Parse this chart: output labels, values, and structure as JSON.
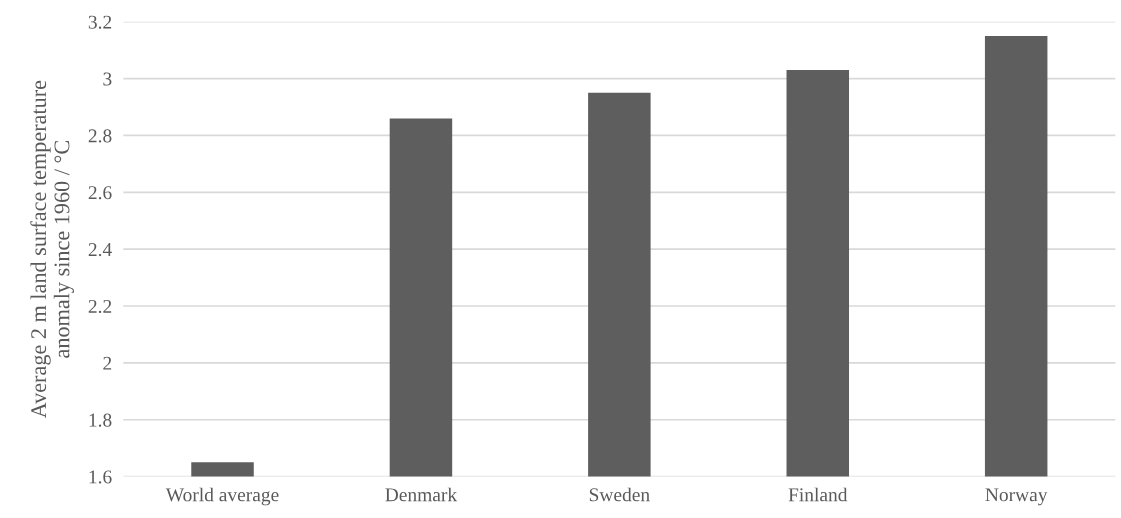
{
  "chart_data": {
    "type": "bar",
    "ylabel": "Average 2 m land surface temperature\nanomaly since 1960 / °C",
    "categories": [
      "World average",
      "Denmark",
      "Sweden",
      "Finland",
      "Norway"
    ],
    "values": [
      1.65,
      2.86,
      2.95,
      3.03,
      3.15
    ],
    "color": "#5e5e5e",
    "ylim": [
      1.6,
      3.2
    ],
    "yticks": [
      1.6,
      1.8,
      2,
      2.2,
      2.4,
      2.6,
      2.8,
      3,
      3.2
    ],
    "grid": "y"
  }
}
